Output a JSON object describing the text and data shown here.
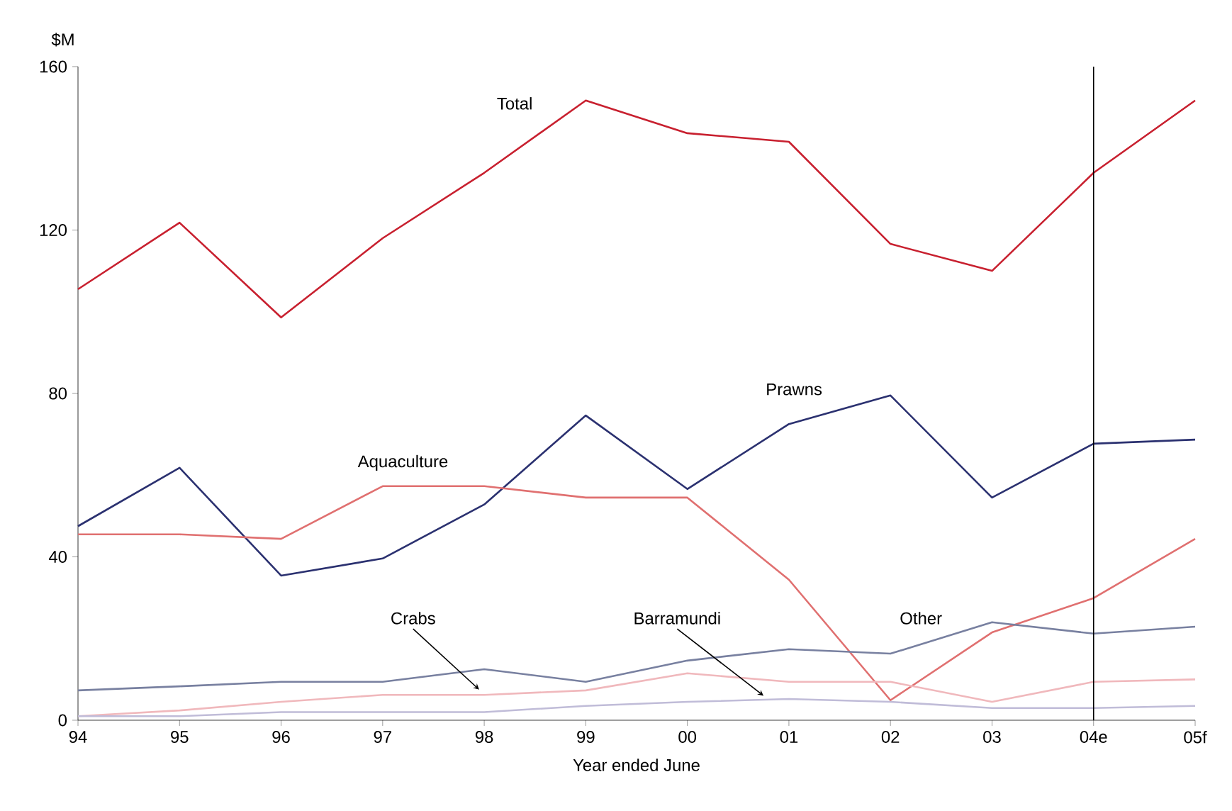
{
  "chart_data": {
    "type": "line",
    "xlabel": "Year ended June",
    "ylabel": "$M",
    "categories": [
      "94",
      "95",
      "96",
      "97",
      "98",
      "99",
      "00",
      "01",
      "02",
      "03",
      "04e",
      "05f"
    ],
    "ylim": [
      0,
      160
    ],
    "yticks": [
      0,
      40,
      80,
      120,
      160
    ],
    "grid": false,
    "marker": "none",
    "line_style": "solid",
    "ref_lines": [
      {
        "axis": "x",
        "value": "04e",
        "color": "#000000"
      }
    ],
    "series": [
      {
        "name": "Total",
        "color": "#c8202f",
        "values": [
          105.5,
          121.8,
          98.6,
          118,
          134,
          151.7,
          143.7,
          141.6,
          116.6,
          110,
          134,
          151.7
        ]
      },
      {
        "name": "Prawns",
        "color": "#2b3170",
        "values": [
          47.5,
          61.8,
          35.4,
          39.6,
          52.8,
          74.6,
          56.6,
          72.5,
          79.5,
          54.5,
          67.7,
          68.7
        ]
      },
      {
        "name": "Aquaculture",
        "color": "#e07070",
        "values": [
          45.5,
          45.5,
          44.4,
          57.3,
          57.3,
          54.5,
          54.5,
          34.4,
          4.9,
          21.5,
          29.9,
          44.4
        ]
      },
      {
        "name": "Other",
        "color": "#7880a0",
        "values": [
          7.3,
          8.3,
          9.4,
          9.4,
          12.5,
          9.4,
          14.6,
          17.4,
          16.3,
          24,
          21.2,
          22.9
        ]
      },
      {
        "name": "Crabs",
        "color": "#f0b8bc",
        "values": [
          1,
          2.4,
          4.5,
          6.2,
          6.2,
          7.3,
          11.5,
          9.4,
          9.4,
          4.5,
          9.4,
          10
        ]
      },
      {
        "name": "Barramundi",
        "color": "#c0bcd8",
        "values": [
          1,
          1,
          2,
          2,
          2,
          3.5,
          4.5,
          5.2,
          4.5,
          3,
          3,
          3.5
        ]
      }
    ]
  }
}
